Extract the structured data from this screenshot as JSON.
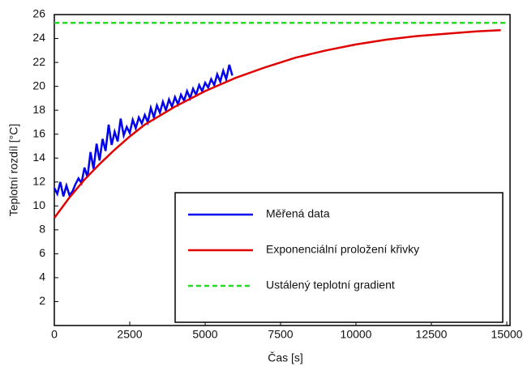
{
  "chart_data": {
    "type": "line",
    "x_label": "Čas [s]",
    "y_label": "Teplotní rozdíl [°C]",
    "xlim": [
      0,
      15000
    ],
    "ylim": [
      0,
      26
    ],
    "xticks": [
      0,
      2500,
      5000,
      7500,
      10000,
      12500,
      15000
    ],
    "yticks": [
      2,
      4,
      6,
      8,
      10,
      12,
      14,
      16,
      18,
      20,
      22,
      24,
      26
    ],
    "grid": false,
    "legend": "lower right",
    "series": [
      {
        "name": "Měřená data",
        "color": "#0000ee",
        "style": "solid",
        "x": [
          0,
          100,
          200,
          300,
          400,
          500,
          600,
          700,
          800,
          900,
          1000,
          1100,
          1200,
          1300,
          1400,
          1500,
          1600,
          1700,
          1800,
          1900,
          2000,
          2100,
          2200,
          2300,
          2400,
          2500,
          2600,
          2700,
          2800,
          2900,
          3000,
          3100,
          3200,
          3300,
          3400,
          3500,
          3600,
          3700,
          3800,
          3900,
          4000,
          4100,
          4200,
          4300,
          4400,
          4500,
          4600,
          4700,
          4800,
          4900,
          5000,
          5100,
          5200,
          5300,
          5400,
          5500,
          5600,
          5700,
          5800,
          5900
        ],
        "values": [
          11.5,
          11,
          12,
          10.8,
          11.7,
          10.9,
          11.2,
          11.8,
          12.3,
          11.9,
          13.2,
          12.4,
          14.5,
          13.1,
          15.2,
          13.8,
          15.6,
          14.6,
          16.8,
          15.1,
          16.2,
          15.4,
          17.3,
          15.9,
          16.6,
          16.1,
          17.2,
          16.5,
          17.4,
          16.9,
          17.6,
          17.0,
          18.2,
          17.4,
          18.4,
          17.8,
          18.7,
          18.0,
          18.9,
          18.3,
          19.1,
          18.5,
          19.3,
          18.8,
          19.6,
          19.0,
          19.8,
          19.3,
          20.1,
          19.6,
          20.3,
          19.9,
          20.6,
          20.1,
          21.0,
          20.4,
          21.3,
          20.6,
          21.8,
          20.9
        ]
      },
      {
        "name": "Exponenciální proložení křivky",
        "color": "#e00000",
        "style": "solid",
        "x": [
          0,
          500,
          1000,
          1500,
          2000,
          2500,
          3000,
          4000,
          5000,
          6000,
          7000,
          8000,
          9000,
          10000,
          11000,
          12000,
          13000,
          14000,
          14800
        ],
        "values": [
          9,
          10.7,
          12.2,
          13.5,
          14.7,
          15.8,
          16.8,
          18.3,
          19.6,
          20.7,
          21.6,
          22.4,
          23.0,
          23.5,
          23.9,
          24.2,
          24.4,
          24.6,
          24.7
        ]
      },
      {
        "name": "Ustálený teplotní gradient",
        "color": "#22dd22",
        "style": "dashed",
        "x": [
          0,
          15000
        ],
        "values": [
          25.3,
          25.3
        ]
      }
    ]
  }
}
